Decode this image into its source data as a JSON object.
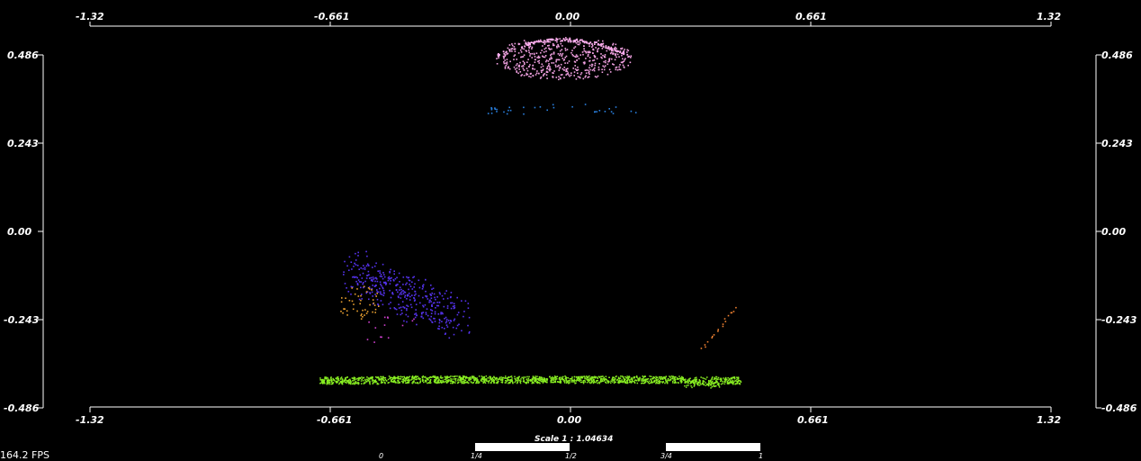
{
  "viewer": {
    "fps_label": "164.2 FPS",
    "scale_label": "Scale 1 : 1.04634",
    "scale_ticks": [
      "0",
      "1/4",
      "1/2",
      "3/4",
      "1"
    ]
  },
  "axes": {
    "x_ticks": [
      "-1.32",
      "-0.661",
      "0.00",
      "0.661",
      "1.32"
    ],
    "y_ticks": [
      "0.486",
      "0.243",
      "0.00",
      "-0.243",
      "-0.486"
    ],
    "x_range": [
      -1.32,
      1.32
    ],
    "y_range": [
      -0.486,
      0.486
    ]
  },
  "colors": {
    "background": "#000000",
    "axis": "#ffffff",
    "pink_cluster": "#f0a0e0",
    "blue_cluster": "#2a80e0",
    "violet_cluster": "#5533ee",
    "orange_cluster": "#e8a030",
    "magenta_cluster": "#d040d0",
    "green_cluster": "#88ee22"
  }
}
